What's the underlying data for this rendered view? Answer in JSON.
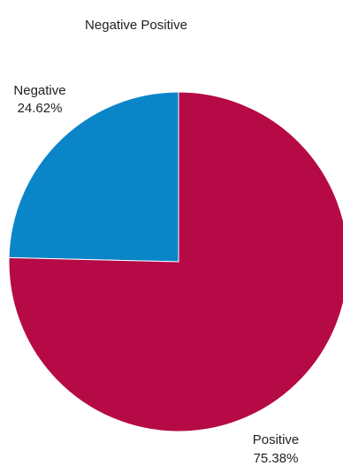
{
  "chart_data": {
    "type": "pie",
    "title": "Negative Positive",
    "categories": [
      "Negative",
      "Positive"
    ],
    "values": [
      24.62,
      75.38
    ],
    "value_labels": [
      "24.62%",
      "75.38%"
    ],
    "colors": [
      "#0a86c8",
      "#b50a45"
    ],
    "start_angle": "12 o'clock",
    "direction": "counterclockwise for Negative, clockwise for Positive",
    "legend": "none"
  }
}
